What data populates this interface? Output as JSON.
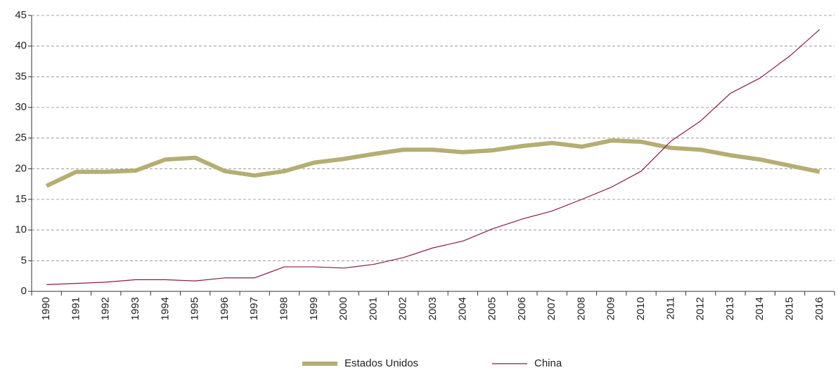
{
  "chart_data": {
    "type": "line",
    "categories": [
      "1990",
      "1991",
      "1992",
      "1993",
      "1994",
      "1995",
      "1996",
      "1997",
      "1998",
      "1999",
      "2000",
      "2001",
      "2002",
      "2003",
      "2004",
      "2005",
      "2006",
      "2007",
      "2008",
      "2009",
      "2010",
      "2011",
      "2012",
      "2013",
      "2014",
      "2015",
      "2016"
    ],
    "series": [
      {
        "name": "Estados Unidos",
        "color": "#b5ad72",
        "values": [
          17.2,
          19.5,
          19.5,
          19.7,
          21.5,
          21.8,
          19.6,
          18.9,
          19.6,
          21.0,
          21.6,
          22.4,
          23.1,
          23.1,
          22.7,
          23.0,
          23.7,
          24.2,
          23.6,
          24.6,
          24.4,
          23.4,
          23.1,
          22.2,
          21.5,
          20.5,
          19.5
        ]
      },
      {
        "name": "China",
        "color": "#8b1a4a",
        "values": [
          1.1,
          1.3,
          1.5,
          1.9,
          1.9,
          1.7,
          2.2,
          2.2,
          4.0,
          4.0,
          3.8,
          4.4,
          5.5,
          7.1,
          8.2,
          10.2,
          11.8,
          13.1,
          15.0,
          17.0,
          19.6,
          24.5,
          27.8,
          32.3,
          34.8,
          38.4,
          42.7
        ]
      }
    ],
    "ylim": [
      0,
      45
    ],
    "yticks": [
      0,
      5,
      10,
      15,
      20,
      25,
      30,
      35,
      40,
      45
    ],
    "grid": true,
    "legend": "bottom"
  }
}
